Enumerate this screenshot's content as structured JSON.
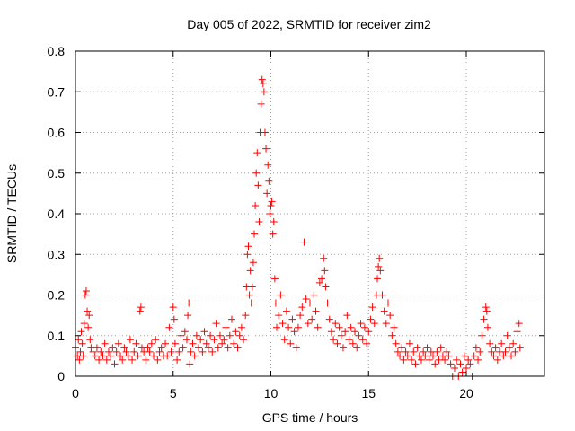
{
  "chart_data": {
    "type": "scatter",
    "title": "Day 005 of 2022, SRMTID for receiver zim2",
    "xlabel": "GPS time / hours",
    "ylabel": "SRMTID / TECUs",
    "xlim": [
      0,
      24
    ],
    "ylim": [
      0,
      0.8
    ],
    "xticks": [
      0,
      5,
      10,
      15,
      20
    ],
    "yticks": [
      0,
      0.1,
      0.2,
      0.3,
      0.4,
      0.5,
      0.6,
      0.7,
      0.8
    ],
    "grid": true,
    "marker": "+",
    "color": "#ff0000",
    "series": [
      {
        "name": "SRMTID",
        "points": [
          [
            0.0,
            0.07
          ],
          [
            0.1,
            0.05
          ],
          [
            0.15,
            0.09
          ],
          [
            0.2,
            0.04
          ],
          [
            0.25,
            0.06
          ],
          [
            0.3,
            0.11
          ],
          [
            0.35,
            0.08
          ],
          [
            0.4,
            0.05
          ],
          [
            0.45,
            0.13
          ],
          [
            0.5,
            0.2
          ],
          [
            0.55,
            0.21
          ],
          [
            0.6,
            0.16
          ],
          [
            0.65,
            0.12
          ],
          [
            0.7,
            0.15
          ],
          [
            0.75,
            0.09
          ],
          [
            0.8,
            0.07
          ],
          [
            0.9,
            0.06
          ],
          [
            1.0,
            0.05
          ],
          [
            1.1,
            0.07
          ],
          [
            1.2,
            0.04
          ],
          [
            1.3,
            0.06
          ],
          [
            1.4,
            0.05
          ],
          [
            1.5,
            0.08
          ],
          [
            1.6,
            0.04
          ],
          [
            1.7,
            0.06
          ],
          [
            1.8,
            0.05
          ],
          [
            1.9,
            0.07
          ],
          [
            2.0,
            0.03
          ],
          [
            2.1,
            0.06
          ],
          [
            2.2,
            0.08
          ],
          [
            2.3,
            0.05
          ],
          [
            2.4,
            0.04
          ],
          [
            2.5,
            0.07
          ],
          [
            2.6,
            0.06
          ],
          [
            2.7,
            0.05
          ],
          [
            2.8,
            0.09
          ],
          [
            2.9,
            0.04
          ],
          [
            3.0,
            0.06
          ],
          [
            3.1,
            0.08
          ],
          [
            3.2,
            0.05
          ],
          [
            3.3,
            0.16
          ],
          [
            3.35,
            0.17
          ],
          [
            3.4,
            0.07
          ],
          [
            3.5,
            0.06
          ],
          [
            3.6,
            0.04
          ],
          [
            3.7,
            0.07
          ],
          [
            3.8,
            0.06
          ],
          [
            3.9,
            0.08
          ],
          [
            4.0,
            0.05
          ],
          [
            4.1,
            0.09
          ],
          [
            4.2,
            0.04
          ],
          [
            4.3,
            0.06
          ],
          [
            4.4,
            0.07
          ],
          [
            4.5,
            0.05
          ],
          [
            4.6,
            0.08
          ],
          [
            4.7,
            0.05
          ],
          [
            4.8,
            0.12
          ],
          [
            4.9,
            0.06
          ],
          [
            5.0,
            0.17
          ],
          [
            5.05,
            0.14
          ],
          [
            5.1,
            0.08
          ],
          [
            5.2,
            0.04
          ],
          [
            5.3,
            0.06
          ],
          [
            5.4,
            0.1
          ],
          [
            5.5,
            0.07
          ],
          [
            5.6,
            0.11
          ],
          [
            5.7,
            0.09
          ],
          [
            5.75,
            0.15
          ],
          [
            5.8,
            0.18
          ],
          [
            5.85,
            0.03
          ],
          [
            5.9,
            0.06
          ],
          [
            6.0,
            0.08
          ],
          [
            6.1,
            0.05
          ],
          [
            6.2,
            0.1
          ],
          [
            6.3,
            0.07
          ],
          [
            6.4,
            0.09
          ],
          [
            6.5,
            0.06
          ],
          [
            6.6,
            0.11
          ],
          [
            6.7,
            0.08
          ],
          [
            6.8,
            0.07
          ],
          [
            6.9,
            0.1
          ],
          [
            7.0,
            0.06
          ],
          [
            7.1,
            0.09
          ],
          [
            7.2,
            0.13
          ],
          [
            7.3,
            0.07
          ],
          [
            7.4,
            0.1
          ],
          [
            7.5,
            0.08
          ],
          [
            7.6,
            0.09
          ],
          [
            7.7,
            0.12
          ],
          [
            7.8,
            0.07
          ],
          [
            7.9,
            0.1
          ],
          [
            8.0,
            0.14
          ],
          [
            8.1,
            0.08
          ],
          [
            8.2,
            0.11
          ],
          [
            8.3,
            0.07
          ],
          [
            8.4,
            0.1
          ],
          [
            8.5,
            0.12
          ],
          [
            8.6,
            0.09
          ],
          [
            8.7,
            0.15
          ],
          [
            8.75,
            0.22
          ],
          [
            8.8,
            0.3
          ],
          [
            8.85,
            0.32
          ],
          [
            8.9,
            0.2
          ],
          [
            8.95,
            0.26
          ],
          [
            9.0,
            0.18
          ],
          [
            9.05,
            0.22
          ],
          [
            9.1,
            0.28
          ],
          [
            9.15,
            0.35
          ],
          [
            9.2,
            0.42
          ],
          [
            9.25,
            0.5
          ],
          [
            9.3,
            0.55
          ],
          [
            9.35,
            0.47
          ],
          [
            9.4,
            0.38
          ],
          [
            9.45,
            0.6
          ],
          [
            9.5,
            0.67
          ],
          [
            9.55,
            0.73
          ],
          [
            9.6,
            0.72
          ],
          [
            9.65,
            0.7
          ],
          [
            9.7,
            0.6
          ],
          [
            9.75,
            0.56
          ],
          [
            9.8,
            0.45
          ],
          [
            9.85,
            0.52
          ],
          [
            9.9,
            0.48
          ],
          [
            9.95,
            0.4
          ],
          [
            10.0,
            0.42
          ],
          [
            10.05,
            0.43
          ],
          [
            10.1,
            0.35
          ],
          [
            10.15,
            0.38
          ],
          [
            10.2,
            0.24
          ],
          [
            10.25,
            0.18
          ],
          [
            10.3,
            0.12
          ],
          [
            10.4,
            0.15
          ],
          [
            10.5,
            0.2
          ],
          [
            10.6,
            0.13
          ],
          [
            10.7,
            0.09
          ],
          [
            10.8,
            0.16
          ],
          [
            10.9,
            0.12
          ],
          [
            11.0,
            0.08
          ],
          [
            11.1,
            0.14
          ],
          [
            11.2,
            0.11
          ],
          [
            11.3,
            0.07
          ],
          [
            11.4,
            0.12
          ],
          [
            11.5,
            0.15
          ],
          [
            11.6,
            0.17
          ],
          [
            11.7,
            0.33
          ],
          [
            11.8,
            0.19
          ],
          [
            11.9,
            0.13
          ],
          [
            12.0,
            0.18
          ],
          [
            12.1,
            0.14
          ],
          [
            12.2,
            0.2
          ],
          [
            12.3,
            0.16
          ],
          [
            12.4,
            0.12
          ],
          [
            12.5,
            0.23
          ],
          [
            12.6,
            0.24
          ],
          [
            12.7,
            0.29
          ],
          [
            12.75,
            0.26
          ],
          [
            12.8,
            0.22
          ],
          [
            12.9,
            0.18
          ],
          [
            13.0,
            0.14
          ],
          [
            13.1,
            0.11
          ],
          [
            13.2,
            0.09
          ],
          [
            13.3,
            0.13
          ],
          [
            13.4,
            0.08
          ],
          [
            13.5,
            0.12
          ],
          [
            13.6,
            0.1
          ],
          [
            13.7,
            0.07
          ],
          [
            13.8,
            0.11
          ],
          [
            13.9,
            0.15
          ],
          [
            14.0,
            0.09
          ],
          [
            14.1,
            0.12
          ],
          [
            14.2,
            0.08
          ],
          [
            14.3,
            0.11
          ],
          [
            14.4,
            0.07
          ],
          [
            14.5,
            0.1
          ],
          [
            14.6,
            0.13
          ],
          [
            14.7,
            0.09
          ],
          [
            14.8,
            0.12
          ],
          [
            14.9,
            0.08
          ],
          [
            15.0,
            0.11
          ],
          [
            15.1,
            0.14
          ],
          [
            15.2,
            0.17
          ],
          [
            15.3,
            0.13
          ],
          [
            15.4,
            0.2
          ],
          [
            15.45,
            0.24
          ],
          [
            15.5,
            0.27
          ],
          [
            15.55,
            0.29
          ],
          [
            15.6,
            0.26
          ],
          [
            15.7,
            0.2
          ],
          [
            15.8,
            0.16
          ],
          [
            15.9,
            0.13
          ],
          [
            16.0,
            0.18
          ],
          [
            16.1,
            0.15
          ],
          [
            16.2,
            0.1
          ],
          [
            16.3,
            0.12
          ],
          [
            16.4,
            0.08
          ],
          [
            16.5,
            0.06
          ],
          [
            16.6,
            0.05
          ],
          [
            16.7,
            0.07
          ],
          [
            16.8,
            0.04
          ],
          [
            16.9,
            0.06
          ],
          [
            17.0,
            0.05
          ],
          [
            17.1,
            0.08
          ],
          [
            17.2,
            0.04
          ],
          [
            17.3,
            0.06
          ],
          [
            17.4,
            0.03
          ],
          [
            17.5,
            0.07
          ],
          [
            17.6,
            0.05
          ],
          [
            17.7,
            0.04
          ],
          [
            17.8,
            0.06
          ],
          [
            17.9,
            0.05
          ],
          [
            18.0,
            0.07
          ],
          [
            18.1,
            0.04
          ],
          [
            18.2,
            0.06
          ],
          [
            18.3,
            0.05
          ],
          [
            18.4,
            0.03
          ],
          [
            18.5,
            0.06
          ],
          [
            18.6,
            0.04
          ],
          [
            18.7,
            0.07
          ],
          [
            18.8,
            0.05
          ],
          [
            18.9,
            0.04
          ],
          [
            19.0,
            0.06
          ],
          [
            19.1,
            0.05
          ],
          [
            19.2,
            0.03
          ],
          [
            19.3,
            0.0
          ],
          [
            19.4,
            0.02
          ],
          [
            19.5,
            0.04
          ],
          [
            19.6,
            0.0
          ],
          [
            19.7,
            0.03
          ],
          [
            19.8,
            0.01
          ],
          [
            19.9,
            0.05
          ],
          [
            20.0,
            0.02
          ],
          [
            20.1,
            0.04
          ],
          [
            20.2,
            0.03
          ],
          [
            20.3,
            0.0
          ],
          [
            20.4,
            0.05
          ],
          [
            20.5,
            0.07
          ],
          [
            20.6,
            0.04
          ],
          [
            20.7,
            0.06
          ],
          [
            20.8,
            0.1
          ],
          [
            20.9,
            0.14
          ],
          [
            21.0,
            0.17
          ],
          [
            21.05,
            0.16
          ],
          [
            21.1,
            0.12
          ],
          [
            21.2,
            0.08
          ],
          [
            21.3,
            0.06
          ],
          [
            21.4,
            0.05
          ],
          [
            21.5,
            0.07
          ],
          [
            21.6,
            0.04
          ],
          [
            21.7,
            0.06
          ],
          [
            21.8,
            0.08
          ],
          [
            21.9,
            0.05
          ],
          [
            22.0,
            0.06
          ],
          [
            22.1,
            0.1
          ],
          [
            22.2,
            0.07
          ],
          [
            22.3,
            0.05
          ],
          [
            22.4,
            0.08
          ],
          [
            22.5,
            0.06
          ],
          [
            22.6,
            0.11
          ],
          [
            22.7,
            0.13
          ],
          [
            22.75,
            0.07
          ]
        ]
      }
    ]
  }
}
